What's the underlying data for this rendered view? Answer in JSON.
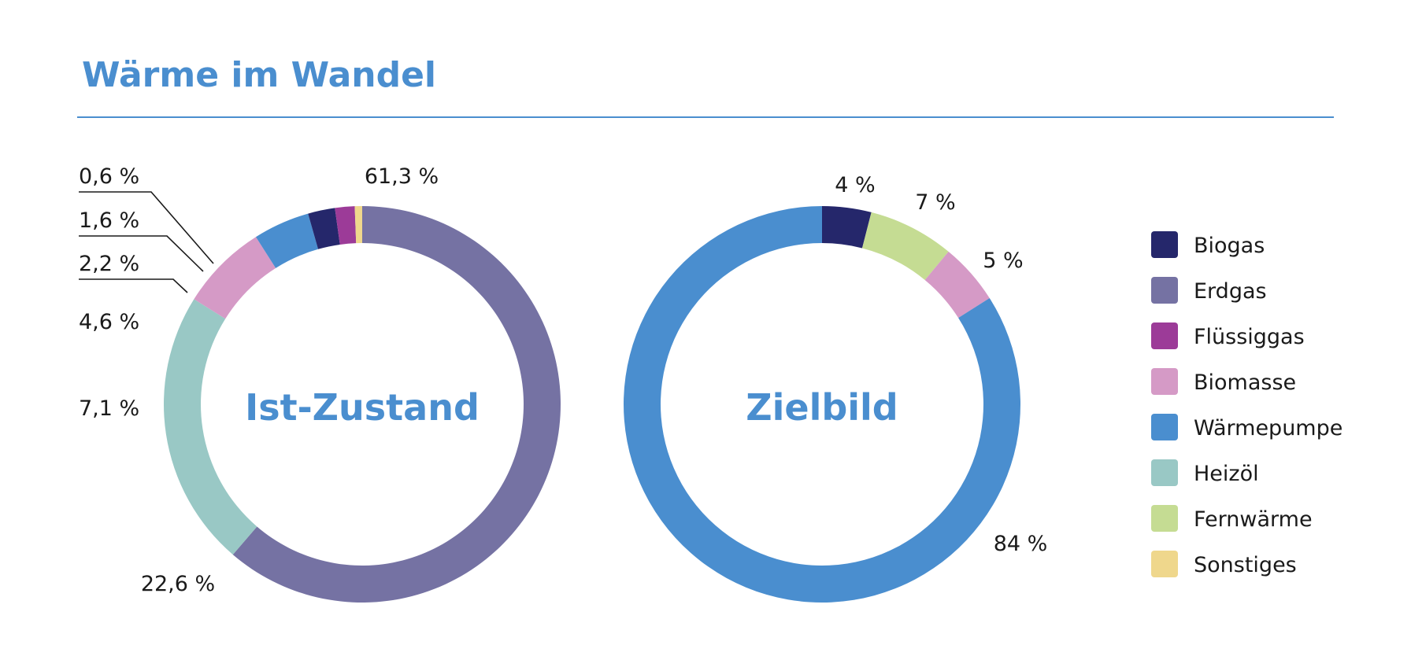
{
  "chart_data": {
    "title": "Wärme im Wandel",
    "type": "pie",
    "legend": "right",
    "categories": [
      "Biogas",
      "Erdgas",
      "Flüssiggas",
      "Biomasse",
      "Wärmepumpe",
      "Heizöl",
      "Fernwärme",
      "Sonstiges"
    ],
    "colors": {
      "Biogas": "#25276b",
      "Erdgas": "#7572a3",
      "Flüssiggas": "#9c3b98",
      "Biomasse": "#d59ac6",
      "Wärmepumpe": "#4a8ecf",
      "Heizöl": "#99c8c5",
      "Fernwärme": "#c5dc93",
      "Sonstiges": "#efd78c"
    },
    "charts": [
      {
        "center_label": "Ist-Zustand",
        "slices": [
          {
            "category": "Erdgas",
            "value": 61.3,
            "label": "61,3 %"
          },
          {
            "category": "Heizöl",
            "value": 22.6,
            "label": "22,6 %"
          },
          {
            "category": "Biomasse",
            "value": 7.1,
            "label": "7,1 %"
          },
          {
            "category": "Wärmepumpe",
            "value": 4.6,
            "label": "4,6 %"
          },
          {
            "category": "Biogas",
            "value": 2.2,
            "label": "2,2 %"
          },
          {
            "category": "Flüssiggas",
            "value": 1.6,
            "label": "1,6 %"
          },
          {
            "category": "Sonstiges",
            "value": 0.6,
            "label": "0,6 %"
          }
        ]
      },
      {
        "center_label": "Zielbild",
        "slices": [
          {
            "category": "Biogas",
            "value": 4,
            "label": "4 %"
          },
          {
            "category": "Fernwärme",
            "value": 7,
            "label": "7 %"
          },
          {
            "category": "Biomasse",
            "value": 5,
            "label": "5 %"
          },
          {
            "category": "Wärmepumpe",
            "value": 84,
            "label": "84 %"
          }
        ]
      }
    ]
  }
}
